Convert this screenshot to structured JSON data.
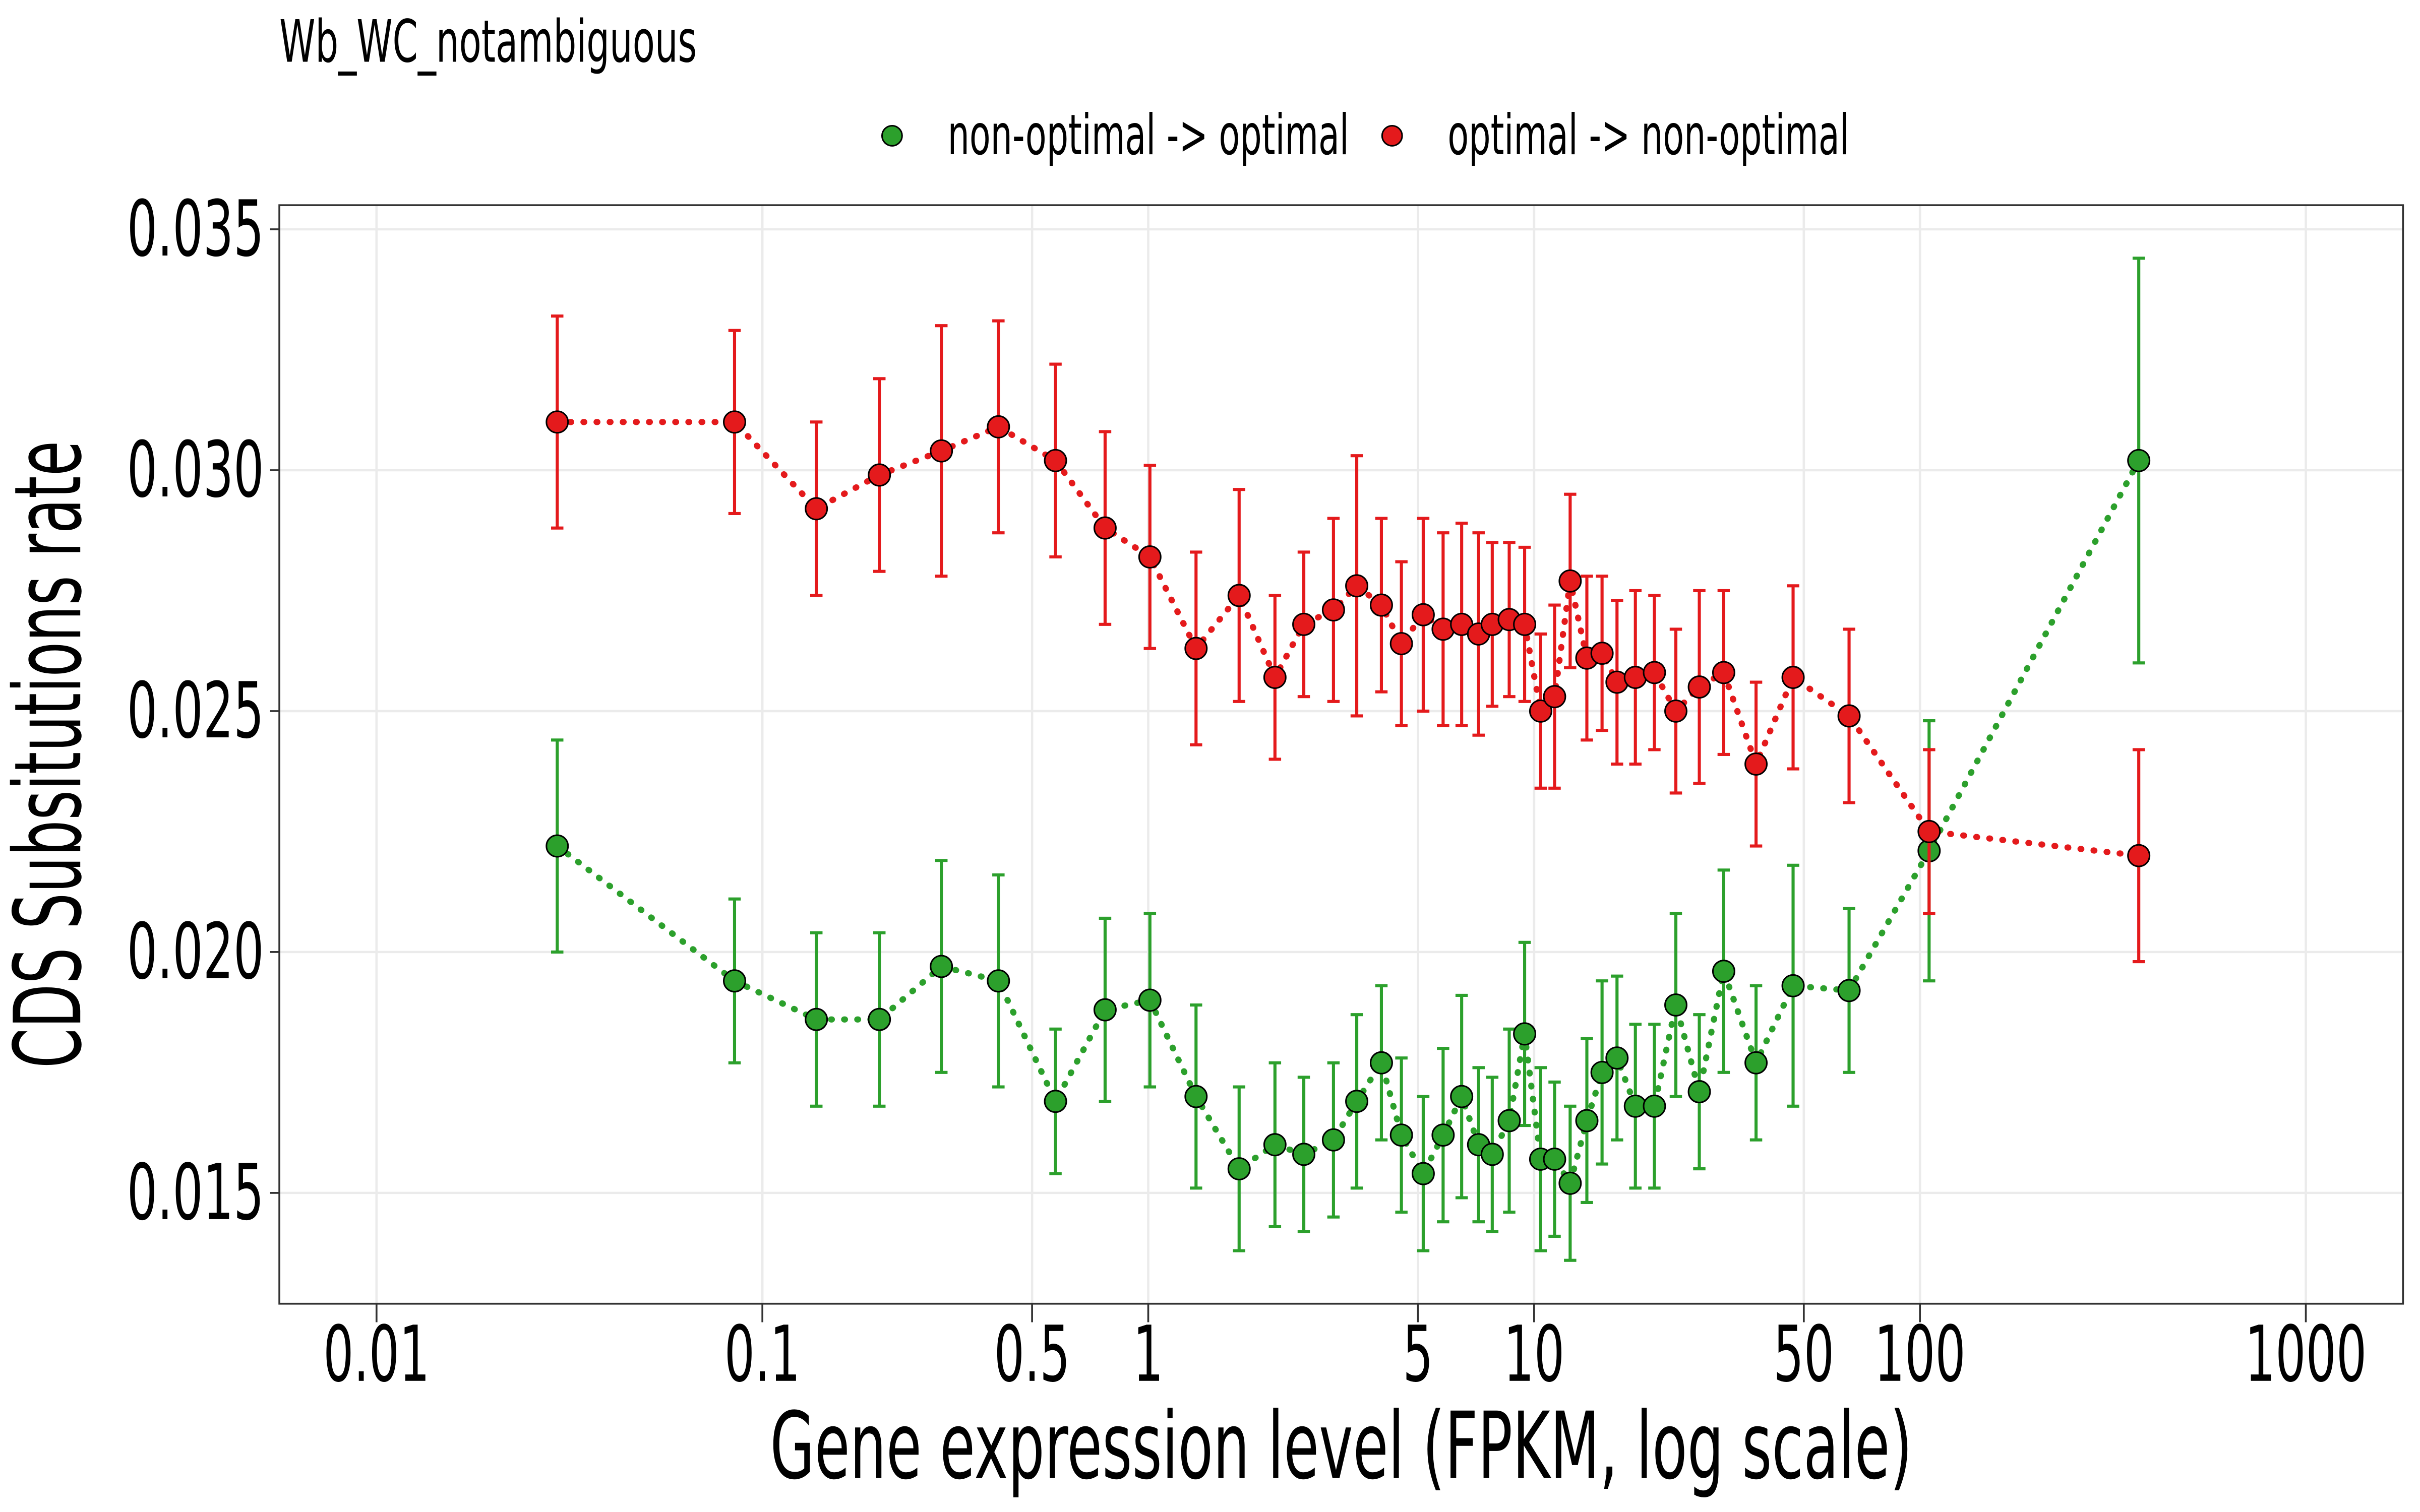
{
  "chart_data": {
    "type": "scatter",
    "title": "Wb_WC_notambiguous",
    "x_label": "Gene expression level (FPKM, log scale)",
    "y_label": "CDS Subsitutions rate",
    "x_log": true,
    "grid": true,
    "legend": "top",
    "x": [
      0.0294,
      0.0847,
      0.138,
      0.201,
      0.291,
      0.409,
      0.575,
      0.773,
      1.01,
      1.33,
      1.72,
      2.13,
      2.53,
      3.02,
      3.47,
      4.02,
      4.53,
      5.16,
      5.81,
      6.49,
      7.18,
      7.79,
      8.62,
      9.45,
      10.4,
      11.3,
      12.4,
      13.7,
      15.0,
      16.4,
      18.3,
      20.5,
      23.3,
      26.8,
      31.0,
      37.6,
      46.9,
      65.5,
      105.6,
      369
    ],
    "series": [
      {
        "name": "non-optimal -> optimal",
        "color": "#2ca02c",
        "values": [
          0.0222,
          0.0194,
          0.0186,
          0.0186,
          0.0197,
          0.0194,
          0.0169,
          0.0188,
          0.019,
          0.017,
          0.0155,
          0.016,
          0.0158,
          0.0161,
          0.0169,
          0.0177,
          0.0162,
          0.0154,
          0.0162,
          0.017,
          0.016,
          0.0158,
          0.0165,
          0.0183,
          0.0157,
          0.0157,
          0.0152,
          0.0165,
          0.0175,
          0.0178,
          0.0168,
          0.0168,
          0.0189,
          0.0171,
          0.0196,
          0.0177,
          0.0193,
          0.0192,
          0.0221,
          0.0302
        ],
        "errors": [
          0.0022,
          0.0017,
          0.0018,
          0.0018,
          0.0022,
          0.0022,
          0.0015,
          0.0019,
          0.0018,
          0.0019,
          0.0017,
          0.0017,
          0.0016,
          0.0016,
          0.0018,
          0.0016,
          0.0016,
          0.0016,
          0.0018,
          0.0021,
          0.0016,
          0.0016,
          0.0019,
          0.0019,
          0.0019,
          0.0016,
          0.0016,
          0.0017,
          0.0019,
          0.0017,
          0.0017,
          0.0017,
          0.0019,
          0.0016,
          0.0021,
          0.0016,
          0.0025,
          0.0017,
          0.0027,
          0.0042
        ]
      },
      {
        "name": "optimal -> non-optimal",
        "color": "#e41a1c",
        "values": [
          0.031,
          0.031,
          0.0292,
          0.0299,
          0.0304,
          0.0309,
          0.0302,
          0.0288,
          0.0282,
          0.0263,
          0.0274,
          0.0257,
          0.0268,
          0.0271,
          0.0276,
          0.0272,
          0.0264,
          0.027,
          0.0267,
          0.0268,
          0.0266,
          0.0268,
          0.0269,
          0.0268,
          0.025,
          0.0253,
          0.0277,
          0.0261,
          0.0262,
          0.0256,
          0.0257,
          0.0258,
          0.025,
          0.0255,
          0.0258,
          0.0239,
          0.0257,
          0.0249,
          0.0225,
          0.022
        ],
        "errors": [
          0.0022,
          0.0019,
          0.0018,
          0.002,
          0.0026,
          0.0022,
          0.002,
          0.002,
          0.0019,
          0.002,
          0.0022,
          0.0017,
          0.0015,
          0.0019,
          0.0027,
          0.0018,
          0.0017,
          0.002,
          0.002,
          0.0021,
          0.0021,
          0.0017,
          0.0016,
          0.0016,
          0.0016,
          0.0019,
          0.0018,
          0.0017,
          0.0016,
          0.0017,
          0.0018,
          0.0016,
          0.0017,
          0.002,
          0.0017,
          0.0017,
          0.0019,
          0.0018,
          0.0017,
          0.0022
        ]
      }
    ],
    "xlim": [
      0.0056,
      1786
    ],
    "xticks": [
      0.01,
      0.1,
      0.5,
      1,
      5,
      10,
      50,
      100,
      1000
    ],
    "ylim": [
      0.0127,
      0.0355
    ],
    "yticks": [
      0.015,
      {
        "value": 0.02,
        "label": "0.020"
      },
      0.025,
      {
        "value": 0.03,
        "label": "0.030"
      },
      0.035
    ]
  }
}
